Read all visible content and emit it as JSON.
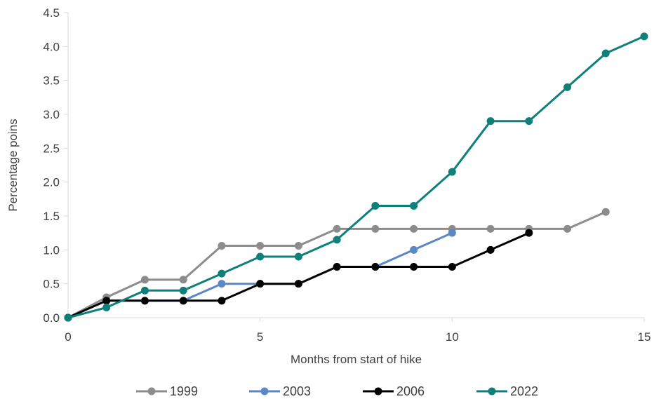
{
  "chart_data": {
    "type": "line",
    "xlabel": "Months from start of hike",
    "ylabel": "Percentage poins",
    "xlim": [
      0,
      15
    ],
    "ylim": [
      0,
      4.5
    ],
    "xticks": [
      0,
      5,
      10,
      15
    ],
    "xtick_labels": [
      "0",
      "5",
      "10",
      "15"
    ],
    "yticks": [
      0,
      0.5,
      1.0,
      1.5,
      2.0,
      2.5,
      3.0,
      3.5,
      4.0,
      4.5
    ],
    "ytick_labels": [
      "0.0",
      "0.5",
      "1.0",
      "1.5",
      "2.0",
      "2.5",
      "3.0",
      "3.5",
      "4.0",
      "4.5"
    ],
    "grid": false,
    "legend_position": "bottom",
    "series": [
      {
        "name": "1999",
        "color": "#8c8c8c",
        "x": [
          0,
          1,
          2,
          3,
          4,
          5,
          6,
          7,
          8,
          9,
          10,
          11,
          12,
          13,
          14
        ],
        "y": [
          0,
          0.3,
          0.56,
          0.56,
          1.06,
          1.06,
          1.06,
          1.31,
          1.31,
          1.31,
          1.31,
          1.31,
          1.31,
          1.31,
          1.56
        ]
      },
      {
        "name": "2003",
        "color": "#5b87c5",
        "x": [
          0,
          1,
          2,
          3,
          4,
          5,
          6,
          7,
          8,
          9,
          10
        ],
        "y": [
          0,
          0.25,
          0.25,
          0.25,
          0.5,
          0.5,
          0.5,
          0.75,
          0.75,
          1.0,
          1.25
        ]
      },
      {
        "name": "2006",
        "color": "#000000",
        "x": [
          0,
          1,
          2,
          3,
          4,
          5,
          6,
          7,
          8,
          9,
          10,
          11,
          12
        ],
        "y": [
          0,
          0.25,
          0.25,
          0.25,
          0.25,
          0.5,
          0.5,
          0.75,
          0.75,
          0.75,
          0.75,
          1.0,
          1.25
        ]
      },
      {
        "name": "2022",
        "color": "#0e8079",
        "x": [
          0,
          1,
          2,
          3,
          4,
          5,
          6,
          7,
          8,
          9,
          10,
          11,
          12,
          13,
          14,
          15
        ],
        "y": [
          0,
          0.15,
          0.4,
          0.4,
          0.65,
          0.9,
          0.9,
          1.15,
          1.65,
          1.65,
          2.15,
          2.9,
          2.9,
          3.4,
          3.9,
          4.15
        ]
      }
    ]
  }
}
